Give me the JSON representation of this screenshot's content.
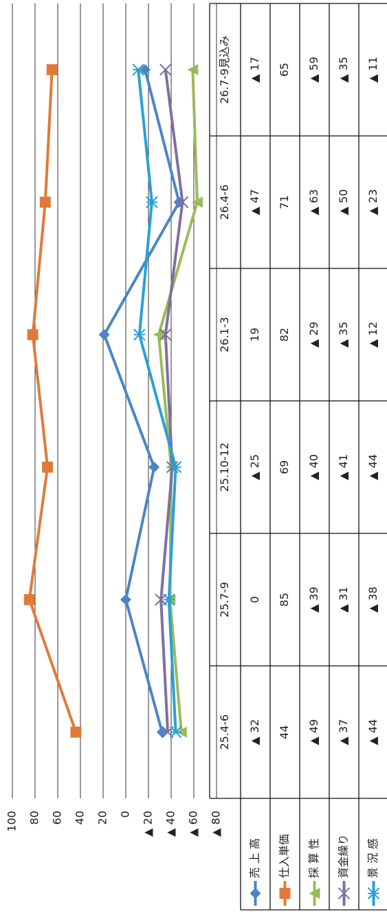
{
  "chart_data": {
    "type": "line",
    "categories": [
      "25.4-6",
      "25.7-9",
      "25.10-12",
      "26.1-3",
      "26.4-6",
      "26.7-9見込み"
    ],
    "ylim": [
      -80,
      100
    ],
    "yticks": [
      100,
      80,
      60,
      40,
      20,
      0,
      {
        "value": -20,
        "label": "▲ 20"
      },
      {
        "value": -40,
        "label": "▲ 40"
      },
      {
        "value": -60,
        "label": "▲ 60"
      },
      {
        "value": -80,
        "label": "▲ 80"
      }
    ],
    "grid": true,
    "series": [
      {
        "name": "売 上 高",
        "color": "#4a86c5",
        "marker": "diamond",
        "values": [
          -32,
          0,
          -25,
          19,
          -47,
          -17
        ],
        "value_labels": [
          "▲ 32",
          "0",
          "▲ 25",
          "19",
          "▲ 47",
          "▲ 17"
        ]
      },
      {
        "name": "仕入単価",
        "color": "#e07a3a",
        "marker": "square",
        "values": [
          44,
          85,
          69,
          82,
          71,
          65
        ],
        "value_labels": [
          "44",
          "85",
          "69",
          "82",
          "71",
          "65"
        ]
      },
      {
        "name": "採 算 性",
        "color": "#9bbb59",
        "marker": "triangle",
        "values": [
          -49,
          -39,
          -40,
          -29,
          -63,
          -59
        ],
        "value_labels": [
          "▲ 49",
          "▲ 39",
          "▲ 40",
          "▲ 29",
          "▲ 63",
          "▲ 59"
        ]
      },
      {
        "name": "資金繰り",
        "color": "#7f6fa0",
        "marker": "cross",
        "values": [
          -37,
          -31,
          -41,
          -35,
          -50,
          -35
        ],
        "value_labels": [
          "▲ 37",
          "▲ 31",
          "▲ 41",
          "▲ 35",
          "▲ 50",
          "▲ 35"
        ]
      },
      {
        "name": "景 況 感",
        "color": "#2aa0d8",
        "marker": "star",
        "values": [
          -44,
          -38,
          -44,
          -12,
          -23,
          -11
        ],
        "value_labels": [
          "▲ 44",
          "▲ 38",
          "▲ 44",
          "▲ 12",
          "▲ 23",
          "▲ 11"
        ]
      }
    ]
  }
}
